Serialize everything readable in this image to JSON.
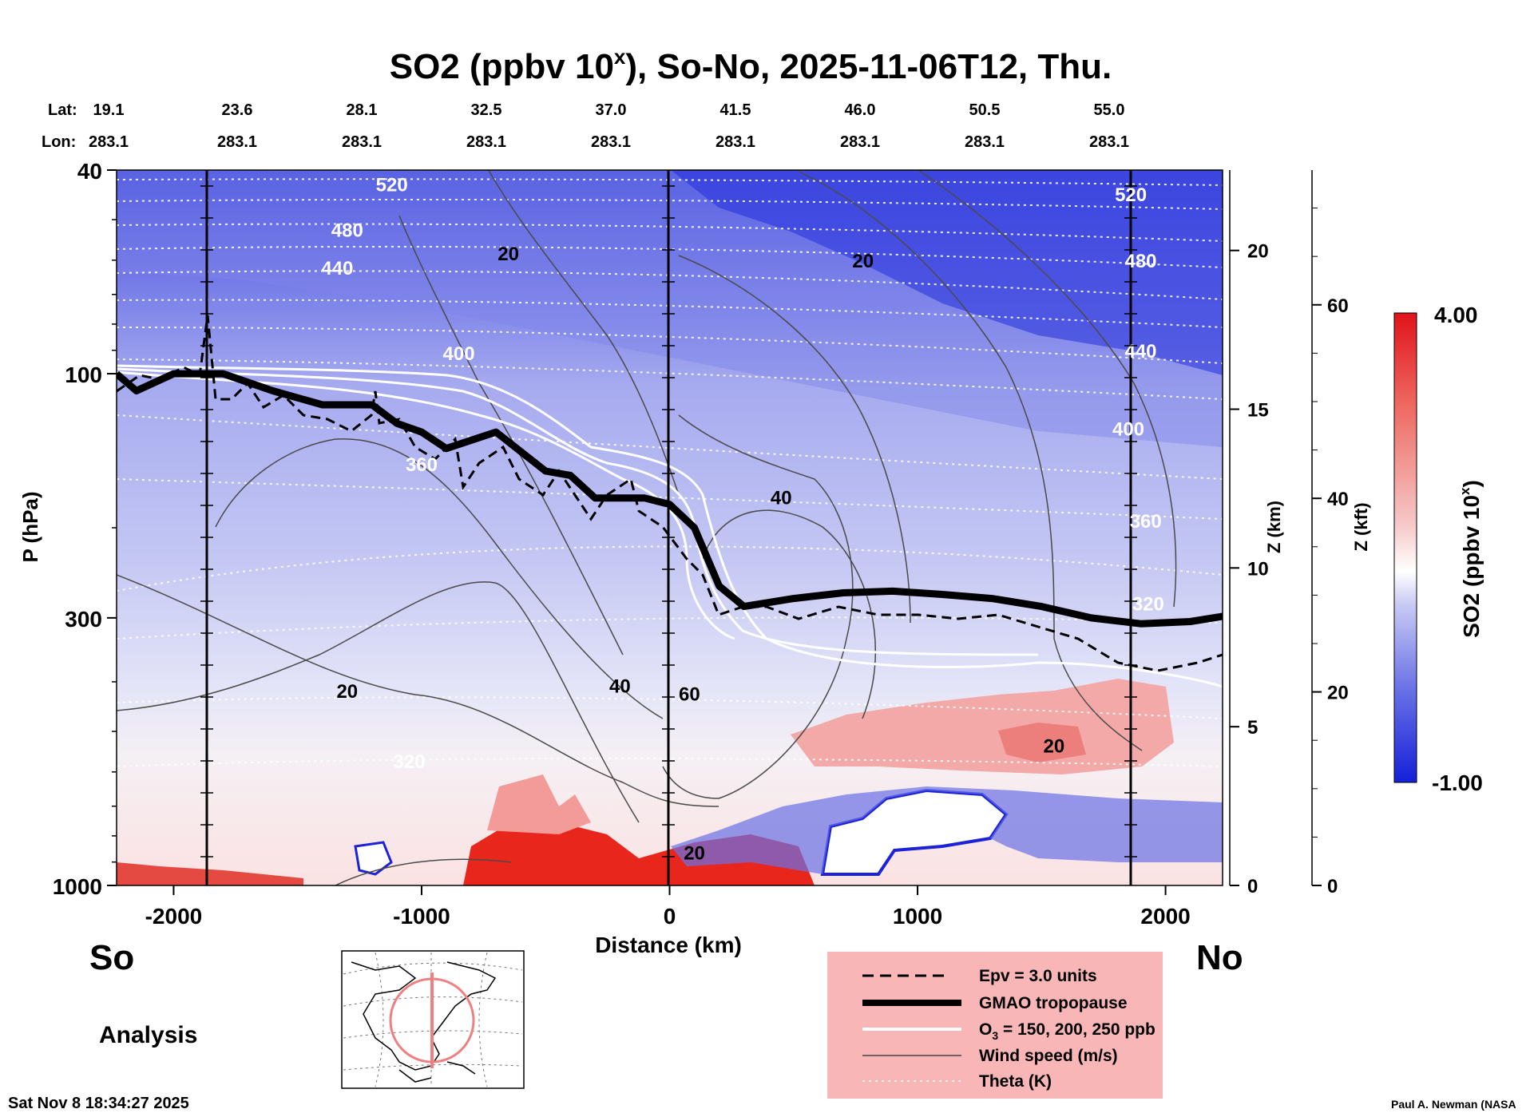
{
  "title": {
    "main": "SO2 (ppbv 10",
    "sup": "x",
    "rest": "), So-No, 2025-11-06T12, Thu."
  },
  "coords": {
    "lat_label": "Lat:",
    "lon_label": "Lon:",
    "lat": [
      "19.1",
      "23.6",
      "28.1",
      "32.5",
      "37.0",
      "41.5",
      "46.0",
      "50.5",
      "55.0"
    ],
    "lon": [
      "283.1",
      "283.1",
      "283.1",
      "283.1",
      "283.1",
      "283.1",
      "283.1",
      "283.1",
      "283.1"
    ]
  },
  "labels": {
    "left_axis": "P (hPa)",
    "z_km": "Z (km)",
    "z_kft": "Z (kft)",
    "x_axis": "Distance (km)",
    "so": "So",
    "no": "No",
    "analysis": "Analysis",
    "timestamp": "Sat Nov  8 18:34:27 2025",
    "credit": "Paul A. Newman (NASA",
    "colorbar_title": "SO2 (ppbv 10",
    "colorbar_sup": "x",
    "colorbar_close": ")"
  },
  "legend": [
    {
      "label": "Epv = 3.0 units",
      "style": "dashed"
    },
    {
      "label": "GMAO tropopause",
      "style": "thick"
    },
    {
      "label": "O",
      "sub": "3",
      "tail": " = 150, 200, 250 ppb",
      "style": "white"
    },
    {
      "label": "Wind speed (m/s)",
      "style": "thin"
    },
    {
      "label": "Theta (K)",
      "style": "dotted"
    }
  ],
  "colors": {
    "deep_blue": "#3a45e0",
    "mid_blue": "#8f95ec",
    "light_blue": "#c9cbf4",
    "white": "#ffffff",
    "light_red": "#f3b0b0",
    "red": "#e8281e",
    "legend_bg": "#f8b6b6"
  },
  "chart_data": {
    "type": "heatmap",
    "variable": "SO2 (ppbv 10^x)",
    "colorbar": {
      "min": -1.0,
      "max": 4.0,
      "min_label": "-1.00",
      "max_label": "4.00"
    },
    "x": {
      "label": "Distance (km)",
      "range": [
        -2230,
        2230
      ],
      "ticks": [
        -2000,
        -1000,
        0,
        1000,
        2000
      ],
      "tick_labels": [
        "-2000",
        "-1000",
        "0",
        "1000",
        "2000"
      ]
    },
    "y": {
      "label": "P (hPa)",
      "scale": "log",
      "range": [
        1000,
        40
      ],
      "ticks": [
        1000,
        300,
        100,
        40
      ],
      "tick_labels": [
        "1000",
        "300",
        "100",
        "40"
      ]
    },
    "z_km": {
      "ticks": [
        0,
        5,
        10,
        15,
        20
      ],
      "tick_labels": [
        "0",
        "5",
        "10",
        "15",
        "20"
      ]
    },
    "z_kft": {
      "ticks": [
        0,
        20,
        40,
        60
      ],
      "tick_labels": [
        "0",
        "20",
        "40",
        "60"
      ]
    },
    "tropopause_hpa": [
      [
        -2230,
        100
      ],
      [
        -2150,
        108
      ],
      [
        -2000,
        100
      ],
      [
        -1800,
        100
      ],
      [
        -1600,
        108
      ],
      [
        -1400,
        115
      ],
      [
        -1200,
        115
      ],
      [
        -1100,
        125
      ],
      [
        -1000,
        130
      ],
      [
        -900,
        140
      ],
      [
        -700,
        130
      ],
      [
        -500,
        155
      ],
      [
        -400,
        158
      ],
      [
        -300,
        175
      ],
      [
        -100,
        175
      ],
      [
        0,
        180
      ],
      [
        100,
        200
      ],
      [
        200,
        260
      ],
      [
        300,
        285
      ],
      [
        500,
        275
      ],
      [
        700,
        268
      ],
      [
        900,
        266
      ],
      [
        1100,
        270
      ],
      [
        1300,
        275
      ],
      [
        1500,
        285
      ],
      [
        1700,
        300
      ],
      [
        1900,
        308
      ],
      [
        2100,
        305
      ],
      [
        2230,
        298
      ]
    ],
    "theta_contours_K": [
      "320",
      "360",
      "400",
      "440",
      "480",
      "520"
    ],
    "wind_speed_contours_ms": [
      "20",
      "40",
      "60"
    ],
    "o3_contours_ppb": [
      150,
      200,
      250
    ],
    "epv_units": 3.0
  }
}
